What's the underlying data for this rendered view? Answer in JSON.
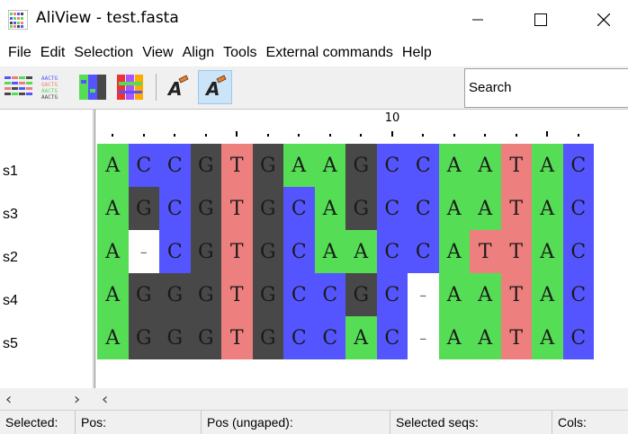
{
  "window": {
    "title": "AliView - test.fasta",
    "icon": "aliview-app-icon",
    "controls": [
      "minimize-icon",
      "maximize-icon",
      "close-icon"
    ]
  },
  "menu": [
    "File",
    "Edit",
    "Selection",
    "View",
    "Align",
    "Tools",
    "External commands",
    "Help"
  ],
  "toolbar": {
    "buttons": [
      "nucleotide-color-scheme-icon",
      "translation-view-icon",
      "color-scheme-icon",
      "highlight-diffs-icon",
      "edit-mode-icon",
      "edit-mode-active-icon"
    ],
    "search_placeholder": "Search"
  },
  "ruler": {
    "label": "10"
  },
  "colors": {
    "A": "#55dd55",
    "C": "#5555ff",
    "G": "#484848",
    "T": "#ee7f7f",
    "-": "#ffffff"
  },
  "alignment": {
    "sequences": [
      {
        "name": "s1",
        "seq": "ACCGTGAAGCCAATAC"
      },
      {
        "name": "s3",
        "seq": "AGCGTGCAGCCAATAC"
      },
      {
        "name": "s2",
        "seq": "A-CGTGCAACCATTAC"
      },
      {
        "name": "s4",
        "seq": "AGGGTGCCGC-AATAC"
      },
      {
        "name": "s5",
        "seq": "AGGGTGCCAC-AATAC"
      }
    ]
  },
  "status": [
    "Selected:",
    "Pos:",
    "Pos (ungaped):",
    "Selected seqs:",
    "Cols:"
  ]
}
